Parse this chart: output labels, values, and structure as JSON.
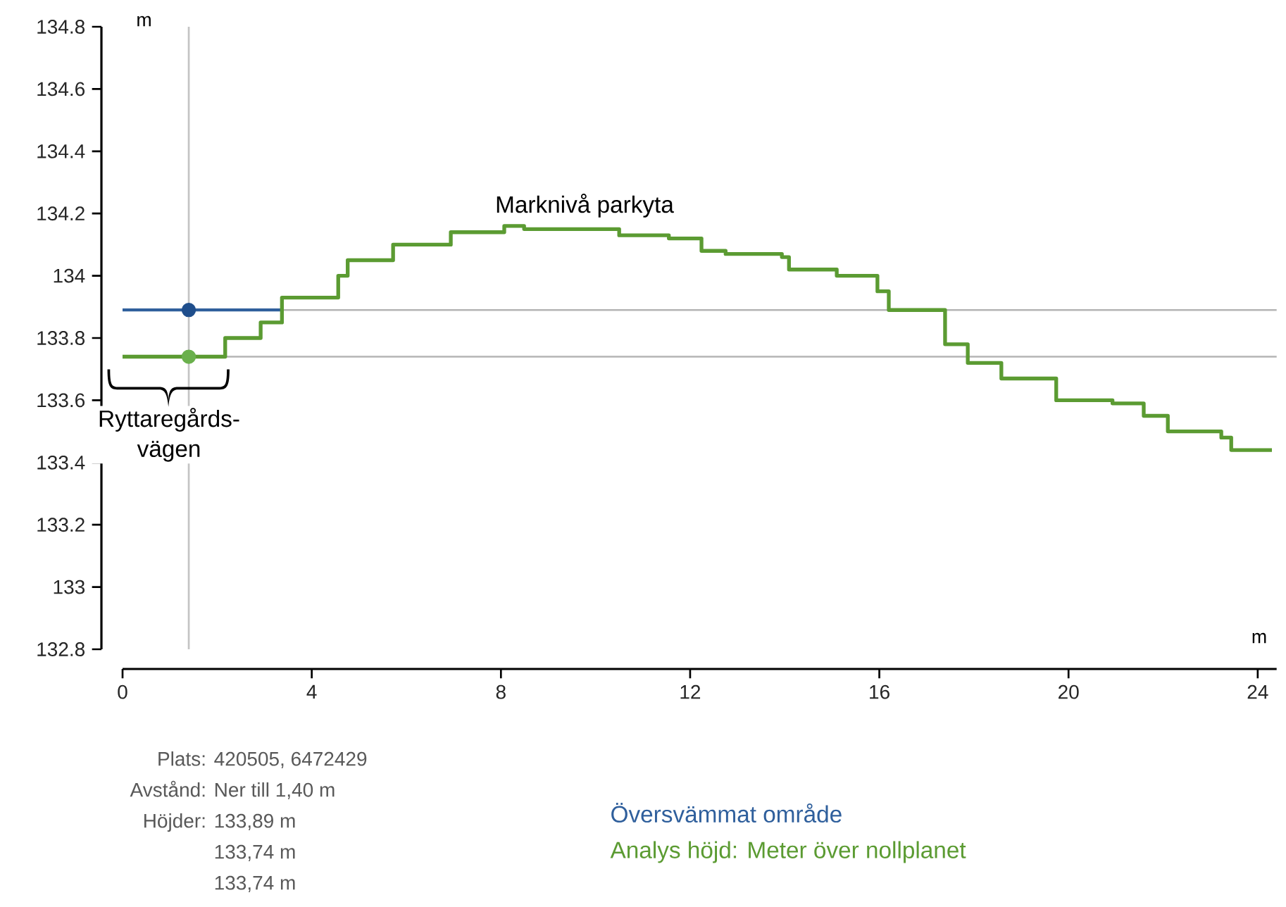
{
  "chart_data": {
    "type": "step",
    "xlabel": "m",
    "ylabel": "m",
    "xlim": [
      0,
      24.4
    ],
    "ylim": [
      132.8,
      134.8
    ],
    "xticks": [
      0,
      4,
      8,
      12,
      16,
      20,
      24
    ],
    "yticks": [
      132.8,
      133,
      133.2,
      133.4,
      133.6,
      133.8,
      134,
      134.2,
      134.4,
      134.6,
      134.8
    ],
    "series": [
      {
        "name": "Översvämmat område",
        "type": "line",
        "color": "#2f5f9c",
        "x": [
          0,
          3.4
        ],
        "values": [
          133.89,
          133.89
        ]
      },
      {
        "type": "scatter",
        "color": "#1f4e8c",
        "x": [
          1.4
        ],
        "values": [
          133.89
        ]
      },
      {
        "name": "Analys höjd: Meter över nollplanet",
        "type": "step",
        "color": "#5b9b32",
        "x": [
          0,
          2.17,
          2.92,
          3.37,
          4.56,
          4.76,
          5.72,
          6.94,
          8.07,
          8.49,
          10.5,
          11.55,
          12.24,
          12.75,
          13.94,
          14.09,
          15.1,
          15.96,
          16.2,
          17.39,
          17.87,
          18.58,
          19.74,
          20.93,
          21.59,
          22.1,
          23.23,
          23.44,
          24.3
        ],
        "values": [
          133.74,
          133.8,
          133.85,
          133.93,
          134.0,
          134.05,
          134.1,
          134.14,
          134.16,
          134.15,
          134.13,
          134.12,
          134.08,
          134.07,
          134.06,
          134.02,
          134.0,
          133.95,
          133.89,
          133.78,
          133.72,
          133.67,
          133.6,
          133.59,
          133.55,
          133.5,
          133.48,
          133.44,
          133.44
        ]
      },
      {
        "type": "scatter",
        "color": "#6ab04c",
        "x": [
          1.4
        ],
        "values": [
          133.74
        ]
      }
    ],
    "ref_lines": [
      {
        "axis": "y",
        "value": 133.89,
        "color": "#b4b4b4"
      },
      {
        "axis": "y",
        "value": 133.74,
        "color": "#b4b4b4"
      },
      {
        "axis": "x",
        "value": 1.4,
        "color": "#c4c4c4"
      }
    ],
    "legend": "bottom",
    "annotations": [
      "Marknivå parkyta",
      "Ryttaregårds- vägen",
      "Plats:",
      "420505, 6472429",
      "Avstånd:",
      "Ner till 1,40 m",
      "Höjder:",
      "133,89 m",
      "133,74 m",
      "133,74 m"
    ]
  }
}
